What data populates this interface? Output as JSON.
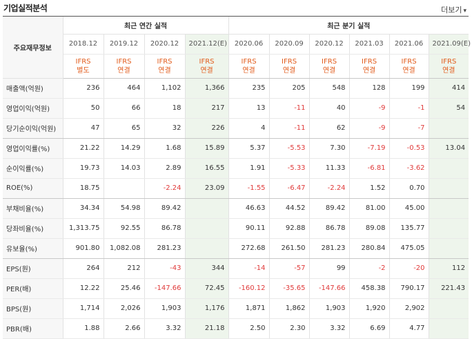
{
  "header": {
    "title": "기업실적분석",
    "more_label": "더보기",
    "more_arrow": "▾"
  },
  "table": {
    "row_header_label": "주요재무정보",
    "groups": [
      {
        "label": "최근 연간 실적"
      },
      {
        "label": "최근 분기 실적"
      }
    ],
    "periods": [
      {
        "date": "2018.12",
        "ifrs1": "IFRS",
        "ifrs2": "별도",
        "estimate": false
      },
      {
        "date": "2019.12",
        "ifrs1": "IFRS",
        "ifrs2": "연결",
        "estimate": false
      },
      {
        "date": "2020.12",
        "ifrs1": "IFRS",
        "ifrs2": "연결",
        "estimate": false
      },
      {
        "date": "2021.12(E)",
        "ifrs1": "IFRS",
        "ifrs2": "연결",
        "estimate": true
      },
      {
        "date": "2020.06",
        "ifrs1": "IFRS",
        "ifrs2": "연결",
        "estimate": false
      },
      {
        "date": "2020.09",
        "ifrs1": "IFRS",
        "ifrs2": "연결",
        "estimate": false
      },
      {
        "date": "2020.12",
        "ifrs1": "IFRS",
        "ifrs2": "연결",
        "estimate": false
      },
      {
        "date": "2021.03",
        "ifrs1": "IFRS",
        "ifrs2": "연결",
        "estimate": false
      },
      {
        "date": "2021.06",
        "ifrs1": "IFRS",
        "ifrs2": "연결",
        "estimate": false
      },
      {
        "date": "2021.09(E)",
        "ifrs1": "IFRS",
        "ifrs2": "연결",
        "estimate": true
      }
    ],
    "rows": [
      {
        "label": "매출액(억원)",
        "values": [
          "236",
          "464",
          "1,102",
          "1,366",
          "235",
          "205",
          "548",
          "128",
          "199",
          "414"
        ]
      },
      {
        "label": "영업이익(억원)",
        "values": [
          "50",
          "66",
          "18",
          "217",
          "13",
          "-11",
          "40",
          "-9",
          "-1",
          "54"
        ]
      },
      {
        "label": "당기순이익(억원)",
        "values": [
          "47",
          "65",
          "32",
          "226",
          "4",
          "-11",
          "62",
          "-9",
          "-7",
          ""
        ]
      },
      {
        "label": "영업이익률(%)",
        "values": [
          "21.22",
          "14.29",
          "1.68",
          "15.89",
          "5.37",
          "-5.53",
          "7.30",
          "-7.19",
          "-0.53",
          "13.04"
        ]
      },
      {
        "label": "순이익률(%)",
        "values": [
          "19.73",
          "14.03",
          "2.89",
          "16.55",
          "1.91",
          "-5.33",
          "11.33",
          "-6.81",
          "-3.62",
          ""
        ]
      },
      {
        "label": "ROE(%)",
        "values": [
          "18.75",
          "",
          "-2.24",
          "23.09",
          "-1.55",
          "-6.47",
          "-2.24",
          "1.52",
          "0.70",
          ""
        ]
      },
      {
        "label": "부채비율(%)",
        "values": [
          "34.34",
          "54.98",
          "89.42",
          "",
          "46.63",
          "44.52",
          "89.42",
          "81.00",
          "45.00",
          ""
        ]
      },
      {
        "label": "당좌비율(%)",
        "values": [
          "1,313.75",
          "92.55",
          "86.78",
          "",
          "90.11",
          "92.88",
          "86.78",
          "89.08",
          "135.77",
          ""
        ]
      },
      {
        "label": "유보율(%)",
        "values": [
          "901.80",
          "1,082.08",
          "281.23",
          "",
          "272.68",
          "261.50",
          "281.23",
          "280.84",
          "475.05",
          ""
        ]
      },
      {
        "label": "EPS(원)",
        "values": [
          "264",
          "212",
          "-43",
          "344",
          "-14",
          "-57",
          "99",
          "-2",
          "-20",
          "112"
        ]
      },
      {
        "label": "PER(배)",
        "values": [
          "12.22",
          "25.46",
          "-147.66",
          "72.45",
          "-160.12",
          "-35.65",
          "-147.66",
          "458.38",
          "790.17",
          "221.43"
        ]
      },
      {
        "label": "BPS(원)",
        "values": [
          "1,714",
          "2,026",
          "1,903",
          "1,176",
          "1,871",
          "1,862",
          "1,903",
          "1,920",
          "2,902",
          ""
        ]
      },
      {
        "label": "PBR(배)",
        "values": [
          "1.88",
          "2.66",
          "3.32",
          "21.18",
          "2.50",
          "2.30",
          "3.32",
          "6.69",
          "4.77",
          ""
        ]
      }
    ]
  },
  "colors": {
    "negative": "#e03a3a",
    "ifrs": "#e25b1b",
    "estimate_bg": "#eef5ec",
    "label_bg": "#f7f7f7"
  }
}
